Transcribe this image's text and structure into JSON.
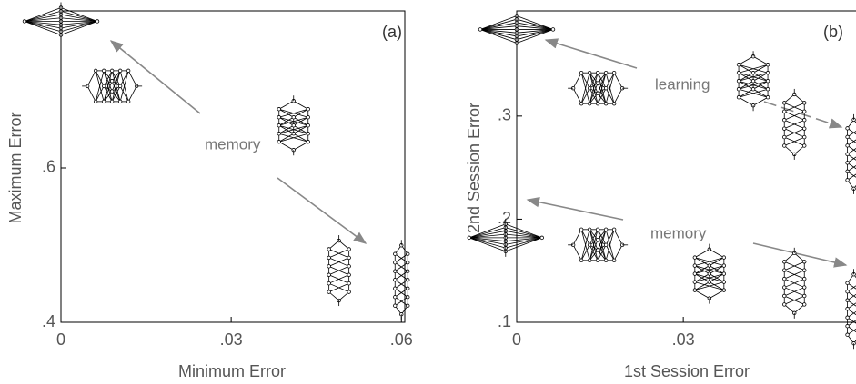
{
  "chart_data": [
    {
      "type": "scatter",
      "panel": "(a)",
      "xlabel": "Minimum Error",
      "ylabel": "Maximum Error",
      "annotations": [
        "memory"
      ],
      "x": [
        0,
        0.009,
        0.041,
        0.049,
        0.06
      ],
      "values": [
        0.79,
        0.706,
        0.655,
        0.467,
        0.455
      ],
      "markers": [
        "fan",
        "wide",
        "medium",
        "tall",
        "narrow"
      ],
      "color": "#000000",
      "xlim": [
        0,
        0.0606
      ],
      "ylim": [
        0.4,
        0.8035
      ],
      "xticks": [
        0,
        {
          "value": 0.03,
          "label": ".03"
        },
        {
          "value": 0.06,
          "label": ".06"
        }
      ],
      "yticks": [
        {
          "value": 0.4,
          "label": ".4"
        },
        {
          "value": 0.6,
          "label": ".6"
        }
      ]
    },
    {
      "type": "scatter",
      "panel": "(b)",
      "xlabel": "1st Session Error",
      "ylabel": "2nd Session Error",
      "annotations": [
        "learning",
        "memory"
      ],
      "x": [
        0,
        0.0146,
        0.0426,
        0.05,
        0.0607,
        -0.002,
        0.0146,
        0.0347,
        0.05,
        0.0607
      ],
      "values": [
        0.384,
        0.327,
        0.334,
        0.292,
        0.263,
        0.182,
        0.175,
        0.147,
        0.138,
        0.113
      ],
      "markers": [
        "fan",
        "wide",
        "medium",
        "tall",
        "narrow",
        "fan",
        "wide",
        "medium",
        "tall",
        "narrow"
      ],
      "color": "#000000",
      "xlim": [
        0,
        0.0611
      ],
      "ylim": [
        0.1,
        0.402
      ],
      "xticks": [
        0,
        {
          "value": 0.03,
          "label": ".03"
        }
      ],
      "yticks": [
        {
          "value": 0.1,
          "label": ".1"
        },
        {
          "value": 0.2,
          "label": ".2"
        },
        {
          "value": 0.3,
          "label": ".3"
        }
      ]
    }
  ]
}
